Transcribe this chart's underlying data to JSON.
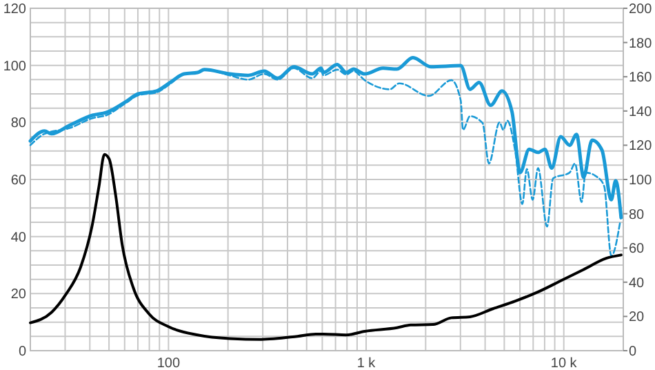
{
  "chart_data": {
    "type": "line",
    "log": "x",
    "grid": true,
    "xlim": [
      20,
      20000
    ],
    "xticks": [
      {
        "value": 20,
        "label": null
      },
      {
        "value": 30,
        "label": null
      },
      {
        "value": 40,
        "label": null
      },
      {
        "value": 50,
        "label": null
      },
      {
        "value": 60,
        "label": null
      },
      {
        "value": 70,
        "label": null
      },
      {
        "value": 80,
        "label": null
      },
      {
        "value": 90,
        "label": null
      },
      100,
      {
        "value": 200,
        "label": null
      },
      {
        "value": 300,
        "label": null
      },
      {
        "value": 400,
        "label": null
      },
      {
        "value": 500,
        "label": null
      },
      {
        "value": 600,
        "label": null
      },
      {
        "value": 700,
        "label": null
      },
      {
        "value": 800,
        "label": null
      },
      {
        "value": 900,
        "label": null
      },
      {
        "value": 1000,
        "label": "1 k"
      },
      {
        "value": 2000,
        "label": null
      },
      {
        "value": 3000,
        "label": null
      },
      {
        "value": 4000,
        "label": null
      },
      {
        "value": 5000,
        "label": null
      },
      {
        "value": 6000,
        "label": null
      },
      {
        "value": 7000,
        "label": null
      },
      {
        "value": 8000,
        "label": null
      },
      {
        "value": 9000,
        "label": null
      },
      {
        "value": 10000,
        "label": "10 k"
      },
      {
        "value": 20000,
        "label": null
      }
    ],
    "ylim": [
      0,
      120
    ],
    "yticks": [
      0,
      {
        "value": 5,
        "label": null
      },
      {
        "value": 10,
        "label": null
      },
      {
        "value": 15,
        "label": null
      },
      20,
      {
        "value": 25,
        "label": null
      },
      {
        "value": 30,
        "label": null
      },
      {
        "value": 35,
        "label": null
      },
      40,
      {
        "value": 45,
        "label": null
      },
      {
        "value": 50,
        "label": null
      },
      {
        "value": 55,
        "label": null
      },
      60,
      {
        "value": 65,
        "label": null
      },
      {
        "value": 70,
        "label": null
      },
      {
        "value": 75,
        "label": null
      },
      80,
      {
        "value": 85,
        "label": null
      },
      {
        "value": 90,
        "label": null
      },
      {
        "value": 95,
        "label": null
      },
      100,
      {
        "value": 105,
        "label": null
      },
      {
        "value": 110,
        "label": null
      },
      {
        "value": 115,
        "label": null
      },
      120
    ],
    "y2lim": [
      0,
      200
    ],
    "y2ticks": [
      0,
      20,
      40,
      60,
      80,
      100,
      120,
      140,
      160,
      180,
      200
    ],
    "series": [
      {
        "color": "#1a9ad6",
        "line_style": "solid",
        "x": [
          20,
          23.6,
          25.6,
          31.6,
          41.3,
          48.5,
          60,
          70.3,
          87,
          102,
          120,
          140.5,
          152,
          204,
          253,
          305,
          357,
          431,
          533,
          591,
          609,
          714,
          794,
          862,
          983,
          1217,
          1432,
          1725,
          2125,
          3010,
          3355,
          3730,
          4266,
          4870,
          5470,
          6010,
          6680,
          7410,
          8030,
          8690,
          9650,
          10700,
          11600,
          12600,
          13900,
          15600,
          17400,
          18300,
          19500
        ],
        "values": [
          73.5,
          77,
          76,
          79,
          82.5,
          83.5,
          87,
          90,
          91,
          94,
          97,
          97.5,
          98.5,
          97,
          96.5,
          98,
          95.5,
          99.5,
          97,
          99,
          97.5,
          100.3,
          97.5,
          98.7,
          97,
          99,
          98.7,
          102.7,
          99.5,
          99.9,
          91.6,
          94,
          86,
          91,
          83.7,
          62.4,
          70.6,
          69.5,
          70.6,
          64,
          75,
          72,
          75.8,
          60.8,
          73.8,
          70.3,
          52.9,
          59.6,
          46.6
        ]
      },
      {
        "color": "#1a9ad6",
        "line_style": "dashed",
        "x": [
          20,
          23.6,
          31.6,
          41.3,
          48.5,
          60,
          70.3,
          87,
          102,
          120,
          140.5,
          152,
          204,
          253,
          305,
          357,
          431,
          533,
          591,
          609,
          714,
          794,
          862,
          983,
          1318,
          1470,
          2075,
          2700,
          3010,
          3090,
          3355,
          3880,
          4180,
          4730,
          4940,
          5180,
          5690,
          6170,
          6500,
          6960,
          7410,
          8230,
          8830,
          10700,
          11400,
          12300,
          12900,
          14800,
          16000,
          17400,
          19300
        ],
        "values": [
          72,
          76,
          78,
          81.5,
          82.5,
          86.5,
          89.5,
          90.5,
          93.5,
          97,
          97.5,
          98.5,
          96.5,
          95,
          97,
          95,
          99,
          95.5,
          98,
          96.5,
          98.5,
          96.8,
          98,
          94.8,
          91.6,
          93.7,
          89.3,
          94.8,
          87.7,
          77.4,
          82.2,
          79.8,
          65.6,
          80,
          77.4,
          80.6,
          69.5,
          51.4,
          63.7,
          52.9,
          64,
          43.5,
          60.4,
          62.4,
          65.6,
          52.1,
          62.4,
          60.8,
          57.7,
          33.2,
          45.3
        ]
      },
      {
        "color": "#000000",
        "line_style": "solid",
        "axis": "y2",
        "x": [
          20,
          25.6,
          30.3,
          35.9,
          41,
          44.5,
          47.4,
          50.1,
          54,
          58.3,
          66.3,
          79.6,
          100,
          140.5,
          204,
          295,
          450,
          556,
          609,
          794,
          983,
          1432,
          1680,
          2180,
          2700,
          3355,
          4380,
          5690,
          7410,
          9650,
          12600,
          16400,
          19500
        ],
        "values": [
          16.3,
          22.4,
          33,
          48.7,
          72.5,
          96,
          114.6,
          112,
          91,
          62,
          36.9,
          21.6,
          14,
          9.2,
          7.1,
          6.6,
          8.4,
          9.7,
          9.7,
          9.2,
          11.3,
          13.4,
          15,
          15.3,
          19.2,
          19.8,
          24.5,
          29,
          34.3,
          40.8,
          47.4,
          54,
          55.9
        ]
      }
    ]
  }
}
